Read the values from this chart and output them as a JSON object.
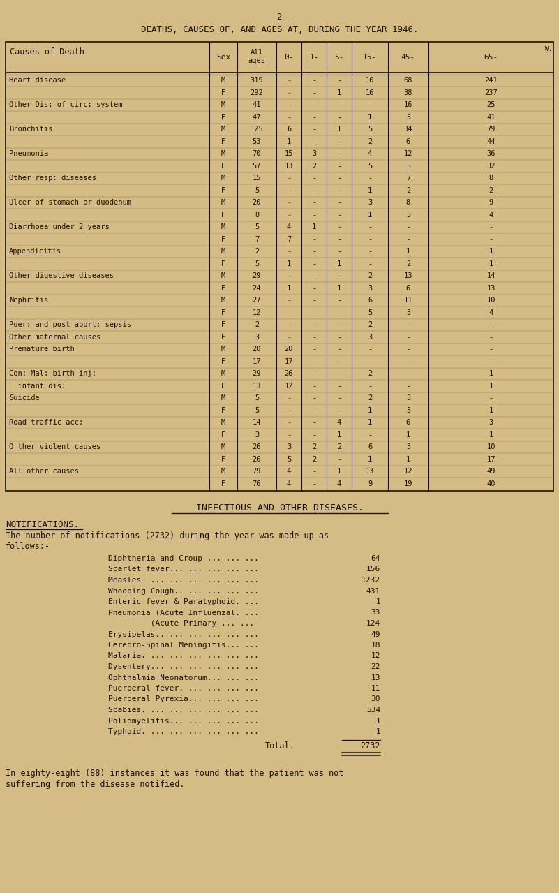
{
  "bg_color": "#d4bc84",
  "text_color": "#1a1208",
  "page_num": "- 2 -",
  "title": "DEATHS, CAUSES OF, AND AGES AT, DURING THE YEAR 1946.",
  "table_headers": [
    "Causes of Death",
    "Sex",
    "All\nages",
    "0-",
    "1-",
    "5-",
    "15-",
    "45-",
    "65-"
  ],
  "table_rows": [
    [
      "Heart disease",
      "M",
      "319",
      "-",
      "-",
      "-",
      "10",
      "68",
      "241"
    ],
    [
      "",
      "F",
      "292",
      "-",
      "-",
      "1",
      "16",
      "38",
      "237"
    ],
    [
      "Other Dis: of circ: system",
      "M",
      "41",
      "-",
      "-",
      "-",
      "-",
      "16",
      "25"
    ],
    [
      "",
      "F",
      "47",
      "-",
      "-",
      "-",
      "1",
      "5",
      "41"
    ],
    [
      "Bronchitis",
      "M",
      "125",
      "6",
      "-",
      "1",
      "5",
      "34",
      "79"
    ],
    [
      "",
      "F",
      "53",
      "1",
      "-",
      "-",
      "2",
      "6",
      "44"
    ],
    [
      "Pneumonia",
      "M",
      "70",
      "15",
      "3",
      "-",
      "4",
      "12",
      "36"
    ],
    [
      "",
      "F",
      "57",
      "13",
      "2",
      "-",
      "5",
      "5",
      "32"
    ],
    [
      "Other resp: diseases",
      "M",
      "15",
      "-",
      "-",
      "-",
      "-",
      "7",
      "8"
    ],
    [
      "",
      "F",
      "5",
      "-",
      "-",
      "-",
      "1",
      "2",
      "2"
    ],
    [
      "Ulcer of stomach or duodenum",
      "M",
      "20",
      "-",
      "-",
      "-",
      "3",
      "8",
      "9"
    ],
    [
      "",
      "F",
      "8",
      "-",
      "-",
      "-",
      "1",
      "3",
      "4"
    ],
    [
      "Diarrhoea under 2 years",
      "M",
      "5",
      "4",
      "1",
      "-",
      "-",
      "-",
      "-"
    ],
    [
      "",
      "F",
      "7",
      "7",
      "-",
      "-",
      "-",
      "-",
      "-"
    ],
    [
      "Appendicitis",
      "M",
      "2",
      "-",
      "-",
      "-",
      "-",
      "1",
      "1"
    ],
    [
      "",
      "F",
      "5",
      "1",
      "-",
      "1",
      "-",
      "2",
      "1"
    ],
    [
      "Other digestive diseases",
      "M",
      "29",
      "-",
      "-",
      "-",
      "2",
      "13",
      "14"
    ],
    [
      "",
      "F",
      "24",
      "1",
      "-",
      "1",
      "3",
      "6",
      "13"
    ],
    [
      "Nephritis",
      "M",
      "27",
      "-",
      "-",
      "-",
      "6",
      "11",
      "10"
    ],
    [
      "",
      "F",
      "12",
      "-",
      "-",
      "-",
      "5",
      "3",
      "4"
    ],
    [
      "Puer: and post-abort: sepsis",
      "F",
      "2",
      "-",
      "-",
      "-",
      "2",
      "-",
      "-"
    ],
    [
      "Other maternal causes",
      "F",
      "3",
      "-",
      "-",
      "-",
      "3",
      "-",
      "-"
    ],
    [
      "Premature birth",
      "M",
      "20",
      "20",
      "-",
      "-",
      "-",
      "-",
      "-"
    ],
    [
      "",
      "F",
      "17",
      "17",
      "-",
      "-",
      "-",
      "-",
      "-"
    ],
    [
      "Con: Mal: birth inj:",
      "M",
      "29",
      "26",
      "-",
      "-",
      "2",
      "-",
      "1"
    ],
    [
      "  infant dis:",
      "F",
      "13",
      "12",
      "-",
      "-",
      "-",
      "-",
      "1"
    ],
    [
      "Suicide",
      "M",
      "5",
      "-",
      "-",
      "-",
      "2",
      "3",
      "-"
    ],
    [
      "",
      "F",
      "5",
      "-",
      "-",
      "-",
      "1",
      "3",
      "1"
    ],
    [
      "Road traffic acc:",
      "M",
      "14",
      "-",
      "-",
      "4",
      "1",
      "6",
      "3"
    ],
    [
      "",
      "F",
      "3",
      "-",
      "-",
      "1",
      "-",
      "1",
      "1"
    ],
    [
      "O ther violent causes",
      "M",
      "26",
      "3",
      "2",
      "2",
      "6",
      "3",
      "10"
    ],
    [
      "",
      "F",
      "26",
      "5",
      "2",
      "-",
      "1",
      "1",
      "17"
    ],
    [
      "All other causes",
      "M",
      "79",
      "4",
      "-",
      "1",
      "13",
      "12",
      "49"
    ],
    [
      "",
      "F",
      "76",
      "4",
      "-",
      "4",
      "9",
      "19",
      "40"
    ]
  ],
  "section2_title": "INFECTIOUS AND OTHER DISEASES.",
  "notifications_header": "NOTIFICATIONS.",
  "notifications_intro": "The number of notifications (2732) during the year was made up as\nfollows:-",
  "notifications": [
    [
      "Diphtheria and Croup ... ... ...",
      "64"
    ],
    [
      "Scarlet fever... ... ... ... ...",
      "156"
    ],
    [
      "Measles  ... ... ... ... ... ...",
      "1232"
    ],
    [
      "Whooping Cough.. ... ... ... ...",
      "431"
    ],
    [
      "Enteric fever & Paratyphoid. ...",
      "1"
    ],
    [
      "Pneumonia (Acute Influenzal. ...",
      "33"
    ],
    [
      "         (Acute Primary ... ...",
      "124"
    ],
    [
      "Erysipelas.. ... ... ... ... ...",
      "49"
    ],
    [
      "Cerebro-Spinal Meningitis... ...",
      "18"
    ],
    [
      "Malaria. ... ... ... ... ... ...",
      "12"
    ],
    [
      "Dysentery... ... ... ... ... ...",
      "22"
    ],
    [
      "Ophthalmia Neonatorum... ... ...",
      "13"
    ],
    [
      "Puerperal fever. ... ... ... ...",
      "11"
    ],
    [
      "Puerperal Pyrexia... ... ... ...",
      "30"
    ],
    [
      "Scabies. ... ... ... ... ... ...",
      "534"
    ],
    [
      "Poliomyelitis... ... ... ... ...",
      "1"
    ],
    [
      "Typhoid. ... ... ... ... ... ...",
      "1"
    ]
  ],
  "total_label": "Total.",
  "total_value": "2732",
  "footer": "In eighty-eight (88) instances it was found that the patient was not\nsuffering from the disease notified."
}
